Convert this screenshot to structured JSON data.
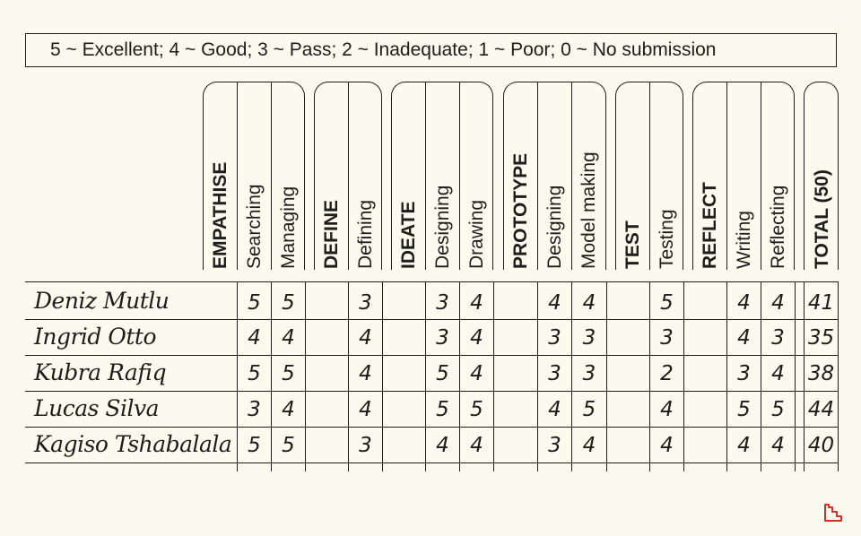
{
  "legend": "5 ~ Excellent;  4 ~ Good;  3 ~ Pass;  2 ~ Inadequate;  1 ~ Poor;  0 ~ No submission",
  "headers": {
    "empathise": "EMPATHISE",
    "searching": "Searching",
    "managing": "Managing",
    "define": "DEFINE",
    "defining": "Defining",
    "ideate": "IDEATE",
    "designing1": "Designing",
    "drawing": "Drawing",
    "prototype": "PROTOTYPE",
    "designing2": "Designing",
    "model_making": "Model making",
    "test": "TEST",
    "testing": "Testing",
    "reflect": "REFLECT",
    "writing": "Writing",
    "reflecting": "Reflecting",
    "total": "TOTAL (50)"
  },
  "students": [
    {
      "name": "Deniz Mutlu",
      "searching": "5",
      "managing": "5",
      "defining": "3",
      "designing1": "3",
      "drawing": "4",
      "designing2": "4",
      "model_making": "4",
      "testing": "5",
      "writing": "4",
      "reflecting": "4",
      "total": "41"
    },
    {
      "name": "Ingrid Otto",
      "searching": "4",
      "managing": "4",
      "defining": "4",
      "designing1": "3",
      "drawing": "4",
      "designing2": "3",
      "model_making": "3",
      "testing": "3",
      "writing": "4",
      "reflecting": "3",
      "total": "35"
    },
    {
      "name": "Kubra Rafiq",
      "searching": "5",
      "managing": "5",
      "defining": "4",
      "designing1": "5",
      "drawing": "4",
      "designing2": "3",
      "model_making": "3",
      "testing": "2",
      "writing": "3",
      "reflecting": "4",
      "total": "38"
    },
    {
      "name": "Lucas Silva",
      "searching": "3",
      "managing": "4",
      "defining": "4",
      "designing1": "5",
      "drawing": "5",
      "designing2": "4",
      "model_making": "5",
      "testing": "4",
      "writing": "5",
      "reflecting": "5",
      "total": "44"
    },
    {
      "name": "Kagiso Tshabalala",
      "searching": "5",
      "managing": "5",
      "defining": "3",
      "designing1": "4",
      "drawing": "4",
      "designing2": "3",
      "model_making": "4",
      "testing": "4",
      "writing": "4",
      "reflecting": "4",
      "total": "40"
    }
  ],
  "colors": {
    "background": "#fbfaee",
    "ink": "#1d1d1b",
    "logo": "#d62b2b"
  },
  "icons": {
    "logo": "corner-logo-icon"
  }
}
